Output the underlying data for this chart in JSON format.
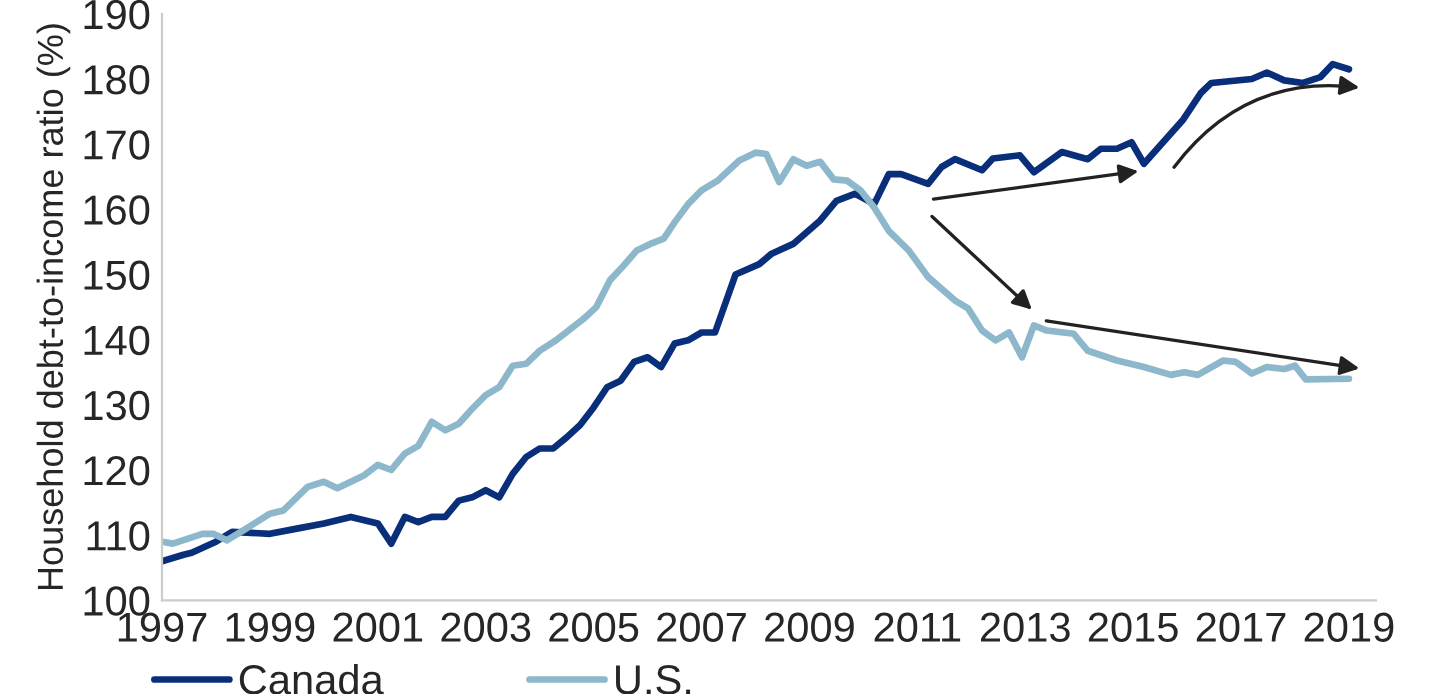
{
  "chart_data": {
    "type": "line",
    "ylabel": "Household debt-to-income ratio (%)",
    "xlim": [
      1997,
      2019.5
    ],
    "xticks": [
      1997,
      1999,
      2001,
      2003,
      2005,
      2007,
      2009,
      2011,
      2013,
      2015,
      2017,
      2019
    ],
    "ylim": [
      100,
      190
    ],
    "yticks": [
      100,
      110,
      120,
      130,
      140,
      150,
      160,
      170,
      180,
      190
    ],
    "grid": false,
    "legend": "bottom left",
    "series": [
      {
        "name": "Canada",
        "color": "#0a2f7a",
        "x": [
          1997,
          1997.4,
          1997.55,
          1998,
          1998.3,
          1999,
          1999.5,
          2000,
          2000.5,
          2001,
          2001.25,
          2001.5,
          2001.75,
          2002,
          2002.25,
          2002.5,
          2002.75,
          2003,
          2003.25,
          2003.5,
          2003.75,
          2004,
          2004.25,
          2004.5,
          2004.75,
          2005,
          2005.25,
          2005.5,
          2005.75,
          2006,
          2006.25,
          2006.5,
          2006.75,
          2007,
          2007.25,
          2007.63,
          2008.07,
          2008.3,
          2008.7,
          2009.2,
          2009.5,
          2009.85,
          2010.2,
          2010.47,
          2010.7,
          2011.2,
          2011.45,
          2011.7,
          2012.2,
          2012.4,
          2012.9,
          2013.16,
          2013.68,
          2014.16,
          2014.4,
          2014.7,
          2014.97,
          2015.2,
          2015.93,
          2016.26,
          2016.45,
          2017.2,
          2017.48,
          2017.8,
          2018.15,
          2018.47,
          2018.7,
          2019
        ],
        "values": [
          106,
          107,
          107.3,
          109,
          110.5,
          110.2,
          111,
          111.8,
          112.8,
          111.8,
          108.7,
          112.8,
          112,
          112.8,
          112.8,
          115.3,
          115.8,
          116.9,
          115.8,
          119.4,
          122,
          123.3,
          123.3,
          125,
          126.9,
          129.6,
          132.7,
          133.7,
          136.6,
          137.3,
          135.8,
          139.4,
          139.9,
          141.1,
          141.1,
          150,
          151.6,
          153.2,
          154.7,
          158.3,
          161.3,
          162.4,
          160.8,
          165.4,
          165.4,
          163.9,
          166.5,
          167.7,
          166,
          167.8,
          168.3,
          165.7,
          168.8,
          167.7,
          169.3,
          169.3,
          170.3,
          167,
          173.8,
          177.9,
          179.4,
          180,
          181,
          179.8,
          179.4,
          180.3,
          182.3,
          181.5
        ]
      },
      {
        "name": "U.S.",
        "color": "#8db8cc",
        "x": [
          1997,
          1997.2,
          1997.75,
          1997.95,
          1998.2,
          1998.5,
          1999,
          1999.25,
          1999.7,
          2000,
          2000.25,
          2000.75,
          2001,
          2001.25,
          2001.5,
          2001.75,
          2002,
          2002.25,
          2002.5,
          2002.75,
          2003,
          2003.25,
          2003.5,
          2003.75,
          2004,
          2004.3,
          2004.8,
          2005.05,
          2005.3,
          2005.55,
          2005.8,
          2006.05,
          2006.3,
          2006.5,
          2006.75,
          2007,
          2007.3,
          2007.7,
          2008,
          2008.2,
          2008.44,
          2008.7,
          2008.95,
          2009.2,
          2009.45,
          2009.7,
          2009.95,
          2010.2,
          2010.47,
          2010.84,
          2011.2,
          2011.7,
          2011.94,
          2012.2,
          2012.45,
          2012.7,
          2012.94,
          2013.16,
          2013.4,
          2013.9,
          2014.16,
          2014.7,
          2015.2,
          2015.7,
          2015.95,
          2016.2,
          2016.67,
          2016.9,
          2017.2,
          2017.48,
          2017.8,
          2018,
          2018.2,
          2019
        ],
        "values": [
          109,
          108.7,
          110.2,
          110.2,
          109.2,
          110.7,
          113.3,
          113.8,
          117.4,
          118.2,
          117.2,
          119.2,
          120.8,
          120,
          122.5,
          123.7,
          127.4,
          126.1,
          127.1,
          129.4,
          131.5,
          132.7,
          136,
          136.3,
          138.3,
          139.9,
          143.1,
          145,
          149.1,
          151.3,
          153.7,
          154.7,
          155.5,
          158,
          160.8,
          162.9,
          164.4,
          167.5,
          168.7,
          168.5,
          164.2,
          167.7,
          166.7,
          167.3,
          164.6,
          164.4,
          162.9,
          160.3,
          156.7,
          153.7,
          149.6,
          146,
          144.8,
          141.4,
          139.9,
          141.1,
          137.3,
          142.2,
          141.4,
          140.9,
          138.3,
          136.8,
          135.8,
          134.6,
          135,
          134.6,
          136.8,
          136.6,
          134.8,
          135.8,
          135.5,
          136,
          133.9,
          134
        ]
      }
    ]
  }
}
